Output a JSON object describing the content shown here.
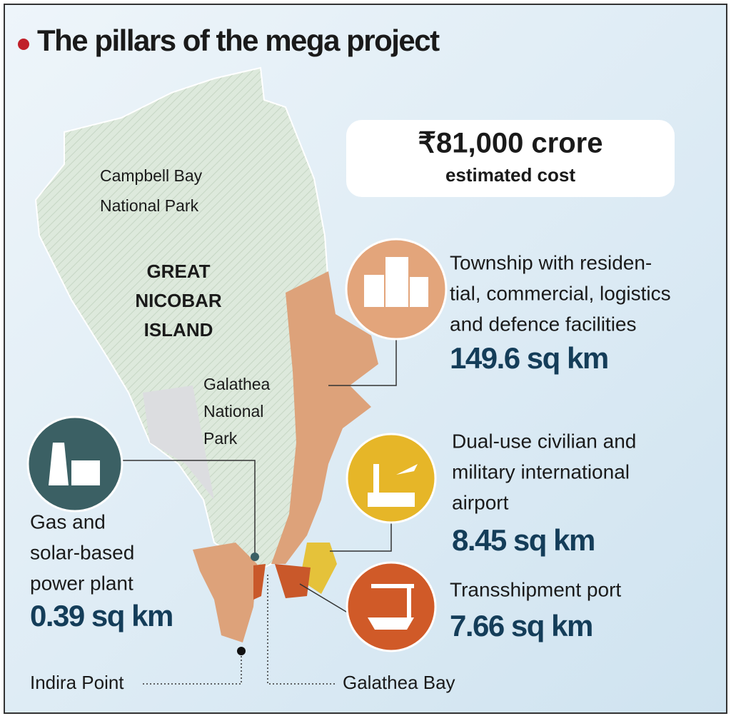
{
  "header": {
    "title": "The pillars of the mega project"
  },
  "cost": {
    "amount": "₹81,000 crore",
    "caption": "estimated cost"
  },
  "map_labels": {
    "campbell_bay": [
      "Campbell Bay",
      "National Park"
    ],
    "island": [
      "GREAT",
      "NICOBAR",
      "ISLAND"
    ],
    "galathea": [
      "Galathea",
      "National",
      "Park"
    ],
    "indira_point": "Indira Point",
    "galathea_bay": "Galathea Bay"
  },
  "items": [
    {
      "lines": [
        "Township with residen-",
        "tial, commercial, logistics",
        "and defence facilities"
      ],
      "area": "149.6 sq km"
    },
    {
      "lines": [
        "Dual-use civilian and",
        "military international",
        "airport"
      ],
      "area": "8.45 sq km"
    },
    {
      "lines": [
        "Transshipment port"
      ],
      "area": "7.66 sq km"
    },
    {
      "lines": [
        "Gas and",
        "solar-based",
        "power plant"
      ],
      "area": "0.39 sq km"
    }
  ]
}
